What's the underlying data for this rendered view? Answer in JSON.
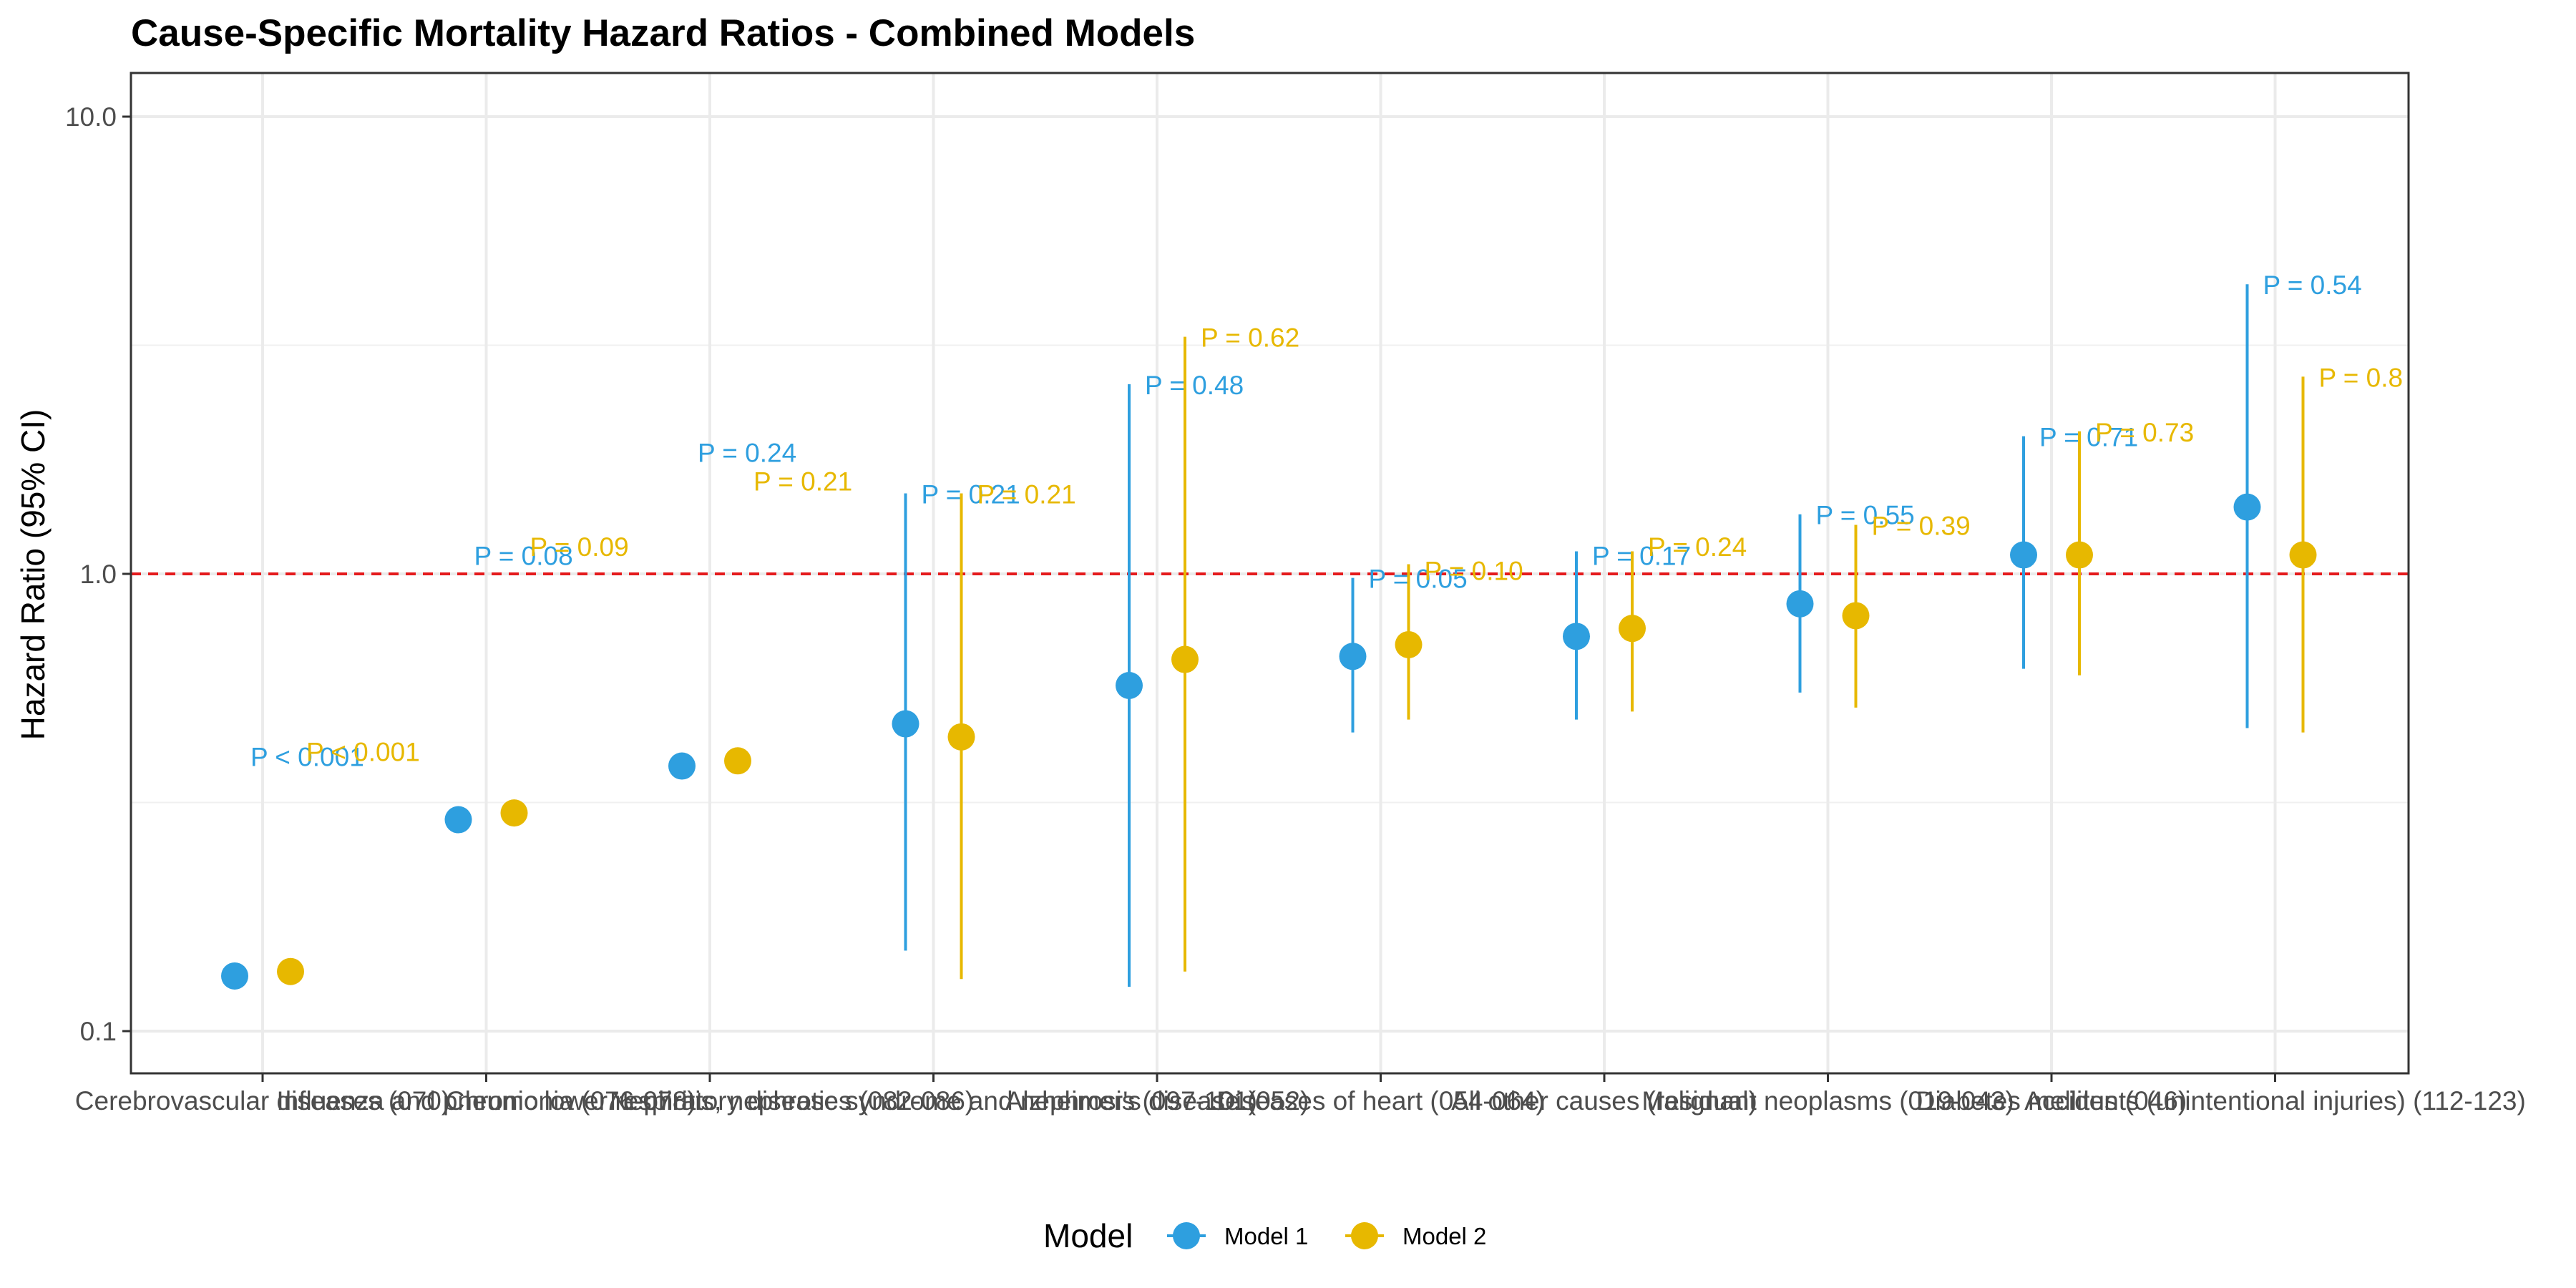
{
  "chart_data": {
    "type": "scatter",
    "title": "Cause-Specific Mortality Hazard Ratios - Combined Models",
    "ylabel": "Hazard Ratio (95% CI)",
    "xlabel": "",
    "y_scale": "log",
    "ylim": [
      0.085,
      12.0
    ],
    "yticks": [
      0.1,
      1.0,
      10.0
    ],
    "ytick_labels": [
      "0.1",
      "1.0",
      "10.0"
    ],
    "reference_line": {
      "y": 1.0,
      "color": "#e41a1c",
      "style": "dashed"
    },
    "grid": true,
    "legend": {
      "title": "Model",
      "position": "bottom"
    },
    "categories": [
      "Cerebrovascular diseases (070)",
      "Influenza and pneumonia (076-078)",
      "Chronic lower respiratory diseases (082-086)",
      "Nephritis, nephrotic syndrome and nephrosis (097-101)",
      "Alzheimer's disease (052)",
      "Diseases of heart (054-064)",
      "All other causes (residual)",
      "Malignant neoplasms (019-043)",
      "Diabetes mellitus (046)",
      "Accidents (unintentional injuries) (112-123)"
    ],
    "series": [
      {
        "name": "Model 1",
        "color": "#2e9fdf",
        "hr": [
          0.132,
          0.29,
          0.38,
          0.47,
          0.57,
          0.66,
          0.73,
          0.86,
          1.1,
          1.4
        ],
        "lower": [
          null,
          null,
          null,
          0.15,
          0.125,
          0.45,
          0.48,
          0.55,
          0.62,
          0.46
        ],
        "upper": [
          null,
          null,
          null,
          1.5,
          2.6,
          0.98,
          1.12,
          1.35,
          2.0,
          4.3
        ],
        "p_labels": [
          "P < 0.001",
          "P = 0.08",
          "P = 0.24",
          "P = 0.21",
          "P = 0.48",
          "P = 0.05",
          "P = 0.17",
          "P = 0.55",
          "P = 0.71",
          "P = 0.54"
        ],
        "p_label_y": [
          0.4,
          1.1,
          1.85,
          1.5,
          2.6,
          0.98,
          1.1,
          1.35,
          2.0,
          4.3
        ]
      },
      {
        "name": "Model 2",
        "color": "#e7b800",
        "hr": [
          0.135,
          0.3,
          0.39,
          0.44,
          0.65,
          0.7,
          0.76,
          0.81,
          1.1,
          1.1
        ],
        "lower": [
          null,
          null,
          null,
          0.13,
          0.135,
          0.48,
          0.5,
          0.51,
          0.6,
          0.45
        ],
        "upper": [
          null,
          null,
          null,
          1.5,
          3.3,
          1.05,
          1.12,
          1.28,
          2.05,
          2.7
        ],
        "p_labels": [
          "P < 0.001",
          "P = 0.09",
          "P = 0.21",
          "P = 0.21",
          "P = 0.62",
          "P = 0.10",
          "P = 0.24",
          "P = 0.39",
          "P = 0.73",
          "P = 0.8"
        ],
        "p_label_y": [
          0.41,
          1.15,
          1.6,
          1.5,
          3.3,
          1.02,
          1.15,
          1.28,
          2.05,
          2.7
        ]
      }
    ]
  }
}
